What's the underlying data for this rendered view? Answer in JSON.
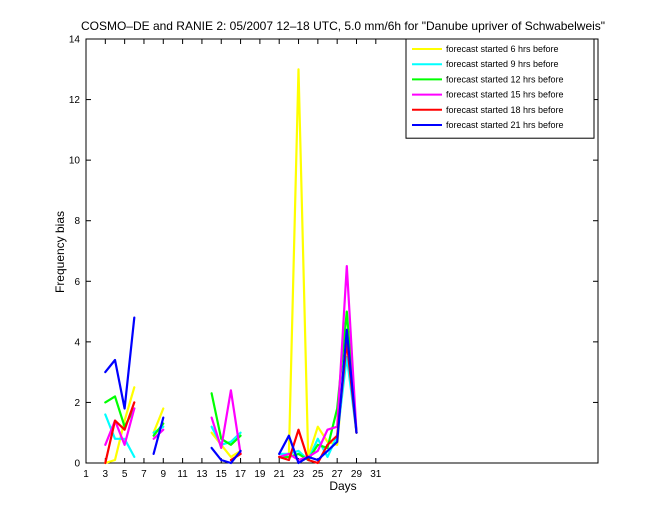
{
  "chart_data": {
    "type": "line",
    "title": "COSMO–DE and RANIE 2: 05/2007 12–18 UTC, 5.0 mm/6h for \"Danube upriver of Schwabelweis\"",
    "xlabel": "Days",
    "ylabel": "Frequency bias",
    "xlim": [
      1,
      54
    ],
    "ylim": [
      0,
      14
    ],
    "x_ticks": [
      1,
      3,
      5,
      7,
      9,
      11,
      13,
      15,
      17,
      19,
      21,
      23,
      25,
      27,
      29,
      31
    ],
    "y_ticks": [
      0,
      2,
      4,
      6,
      8,
      10,
      12,
      14
    ],
    "grid": false,
    "legend_position": "top-right",
    "series": [
      {
        "name": "forecast started 6 hrs before",
        "color": "#ffff00",
        "x": [
          3,
          4,
          5,
          6,
          8,
          9,
          14,
          15,
          16,
          17,
          21,
          22,
          23,
          24,
          25,
          26,
          27,
          28,
          29
        ],
        "y": [
          0,
          0.1,
          1.4,
          2.5,
          1.0,
          1.8,
          1.0,
          0.6,
          0.2,
          0.4,
          0.2,
          0.3,
          13.0,
          0.2,
          1.2,
          0.7,
          0.6,
          4.2,
          1.0
        ]
      },
      {
        "name": "forecast started 9 hrs before",
        "color": "#00ffff",
        "x": [
          3,
          4,
          5,
          6,
          8,
          9,
          14,
          15,
          16,
          17,
          21,
          22,
          23,
          24,
          25,
          26,
          27,
          28,
          29
        ],
        "y": [
          1.6,
          0.8,
          0.8,
          0.2,
          1.0,
          1.2,
          1.2,
          0.6,
          0.7,
          1.0,
          0.3,
          0.3,
          0.4,
          0.1,
          0.8,
          0.2,
          0.9,
          3.5,
          1.0
        ]
      },
      {
        "name": "forecast started 12 hrs before",
        "color": "#00ff00",
        "x": [
          3,
          4,
          5,
          6,
          8,
          9,
          14,
          15,
          16,
          17,
          21,
          22,
          23,
          24,
          25,
          26,
          27,
          28,
          29
        ],
        "y": [
          2.0,
          2.2,
          1.2,
          1.8,
          0.9,
          1.3,
          2.3,
          0.8,
          0.6,
          0.9,
          0.2,
          0.2,
          0.3,
          0.1,
          0.6,
          0.5,
          1.8,
          5.0,
          1.0
        ]
      },
      {
        "name": "forecast started 15 hrs before",
        "color": "#ff00ff",
        "x": [
          3,
          4,
          5,
          6,
          8,
          9,
          14,
          15,
          16,
          17,
          21,
          22,
          23,
          24,
          25,
          26,
          27,
          28,
          29
        ],
        "y": [
          0.6,
          1.4,
          0.6,
          1.8,
          0.8,
          1.1,
          1.5,
          0.5,
          2.4,
          0.3,
          0.2,
          0.3,
          0.1,
          0.2,
          0.4,
          1.1,
          1.2,
          6.5,
          1.0
        ]
      },
      {
        "name": "forecast started 18 hrs before",
        "color": "#ff0000",
        "x": [
          3,
          4,
          5,
          6,
          16,
          17,
          21,
          22,
          23,
          24,
          25,
          26,
          27,
          28,
          29
        ],
        "y": [
          0,
          1.4,
          1.1,
          2.0,
          0.1,
          0.3,
          0.2,
          0.1,
          1.1,
          0.1,
          0.0,
          0.6,
          0.9,
          4.0,
          1.0
        ]
      },
      {
        "name": "forecast started 21 hrs before",
        "color": "#0000ff",
        "x": [
          3,
          4,
          5,
          6,
          8,
          9,
          14,
          15,
          16,
          17,
          21,
          22,
          23,
          24,
          25,
          26,
          27,
          28,
          29
        ],
        "y": [
          3.0,
          3.4,
          1.8,
          4.8,
          0.3,
          1.5,
          0.5,
          0.1,
          0.0,
          0.4,
          0.3,
          0.9,
          0.0,
          0.2,
          0.1,
          0.4,
          0.7,
          4.4,
          1.0
        ]
      }
    ]
  }
}
